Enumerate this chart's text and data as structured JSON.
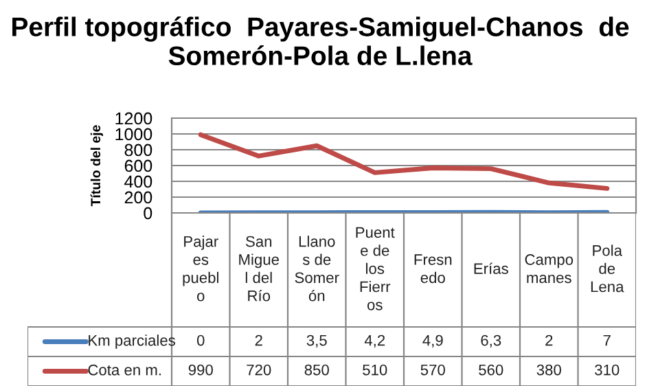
{
  "chart_data": {
    "type": "line",
    "title": "Perfil topográfico  Payares-Samiguel-Chanos  de Somerón-Pola de L.lena",
    "ylabel": "Título del eje",
    "categories": [
      "Pajares pueblo",
      "San Miguel del Río",
      "Llanos de Somerón",
      "Puente de los Fierros",
      "Fresnedo",
      "Erías",
      "Campomanes",
      "Pola de Lena"
    ],
    "series": [
      {
        "name": "Km parciales",
        "color": "#4a7ebb",
        "values": [
          0,
          2,
          3.5,
          4.2,
          4.9,
          6.3,
          2,
          7
        ],
        "value_labels": [
          "0",
          "2",
          "3,5",
          "4,2",
          "4,9",
          "6,3",
          "2",
          "7"
        ]
      },
      {
        "name": "Cota en m.",
        "color": "#be4b48",
        "values": [
          990,
          720,
          850,
          510,
          570,
          560,
          380,
          310
        ],
        "value_labels": [
          "990",
          "720",
          "850",
          "510",
          "570",
          "560",
          "380",
          "310"
        ]
      }
    ],
    "ylim": [
      0,
      1200
    ],
    "yticks": [
      0,
      200,
      400,
      600,
      800,
      1000,
      1200
    ],
    "grid": "y",
    "legend": "bottom",
    "data_labels": true
  }
}
